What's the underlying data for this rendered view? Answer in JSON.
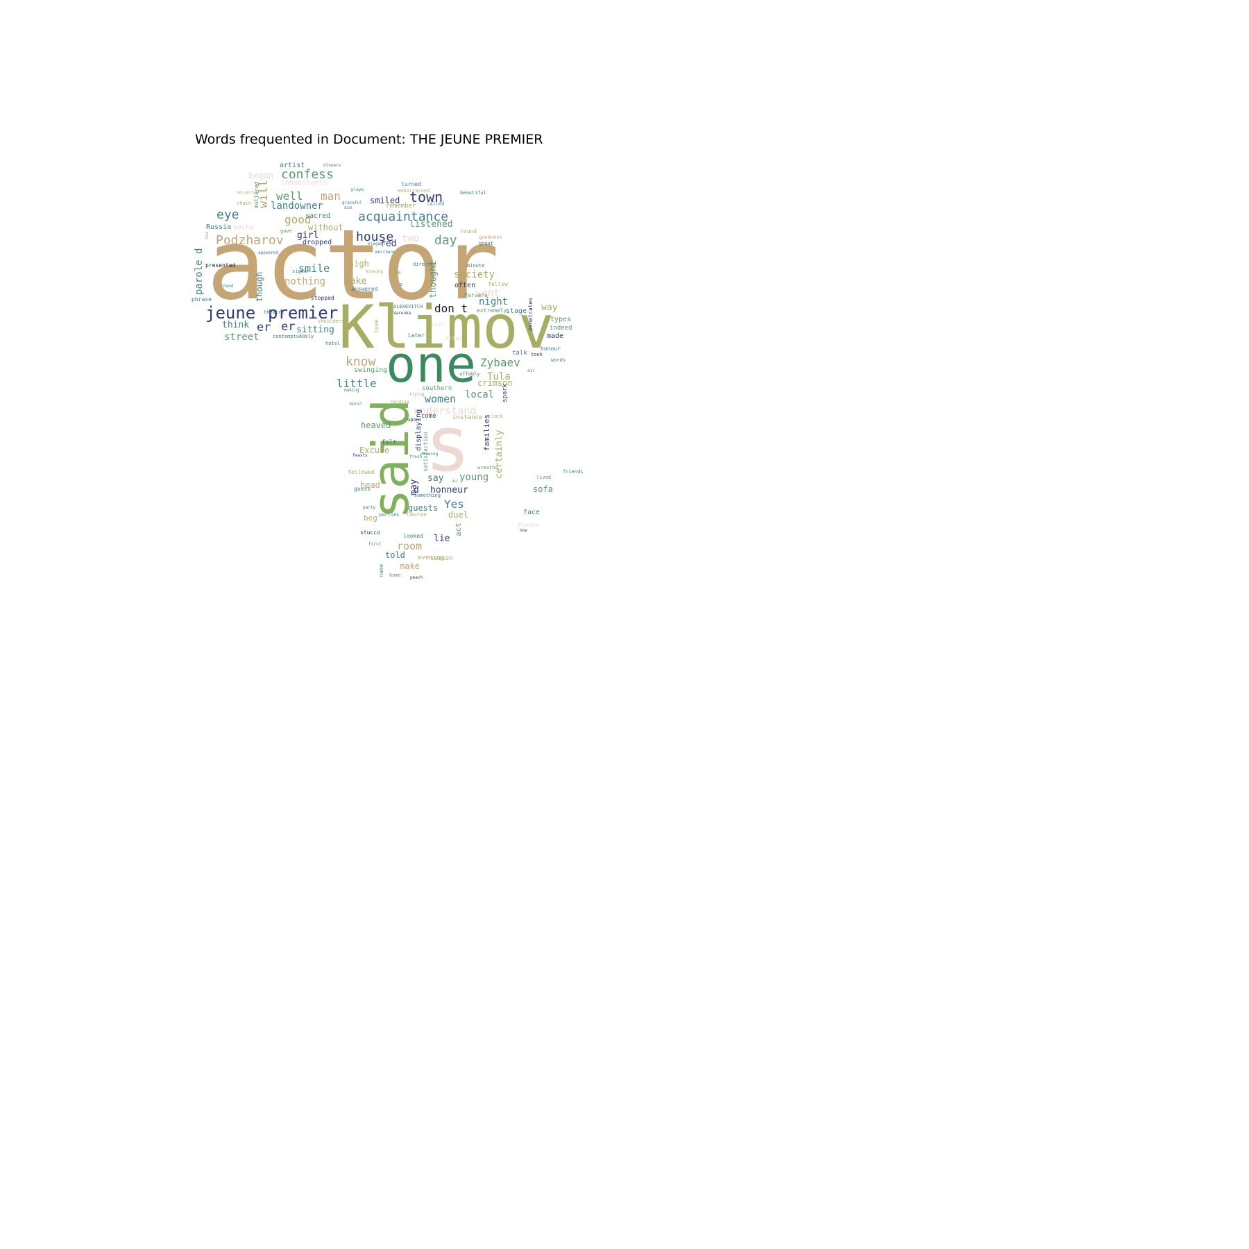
{
  "title": "Words frequented in Document: THE JEUNE PREMIER",
  "palette": {
    "tan": "#c4a573",
    "olive": "#a8ad64",
    "green": "#5a9a70",
    "darkgreen": "#3a8a5d",
    "leafgreen": "#7fb05a",
    "teal": "#3f7f87",
    "navy": "#2b3a7a",
    "pink": "#ecd9d4",
    "black": "#1a1a1a"
  },
  "words": [
    {
      "text": "actor",
      "color": "tan"
    },
    {
      "text": "Klimov",
      "color": "olive"
    },
    {
      "text": "one",
      "color": "darkgreen"
    },
    {
      "text": "said",
      "color": "leafgreen"
    },
    {
      "text": "s",
      "color": "pink"
    },
    {
      "text": "jeune",
      "color": "navy"
    },
    {
      "text": "premier",
      "color": "navy"
    },
    {
      "text": "acquaintance",
      "color": "teal"
    },
    {
      "text": "Podzharov",
      "color": "tan"
    },
    {
      "text": "confess",
      "color": "green"
    },
    {
      "text": "town",
      "color": "navy"
    },
    {
      "text": "house",
      "color": "navy"
    },
    {
      "text": "know",
      "color": "tan"
    },
    {
      "text": "Zybaev",
      "color": "green"
    },
    {
      "text": "little",
      "color": "teal"
    },
    {
      "text": "well",
      "color": "green"
    },
    {
      "text": "man",
      "color": "tan"
    },
    {
      "text": "eye",
      "color": "teal"
    },
    {
      "text": "good",
      "color": "olive"
    },
    {
      "text": "landowner",
      "color": "teal"
    },
    {
      "text": "day",
      "color": "green"
    },
    {
      "text": "society",
      "color": "olive"
    },
    {
      "text": "nothing",
      "color": "tan"
    },
    {
      "text": "smile",
      "color": "teal"
    },
    {
      "text": "will",
      "color": "olive"
    },
    {
      "text": "don t",
      "color": "black"
    },
    {
      "text": "night",
      "color": "teal"
    },
    {
      "text": "Tula",
      "color": "olive"
    },
    {
      "text": "women",
      "color": "teal"
    },
    {
      "text": "local",
      "color": "green"
    },
    {
      "text": "understand",
      "color": "pink"
    },
    {
      "text": "crimson",
      "color": "olive"
    },
    {
      "text": "street",
      "color": "green"
    },
    {
      "text": "sitting",
      "color": "teal"
    },
    {
      "text": "er",
      "color": "navy"
    },
    {
      "text": "er",
      "color": "navy"
    },
    {
      "text": "think",
      "color": "teal"
    },
    {
      "text": "listened",
      "color": "green"
    },
    {
      "text": "smiled",
      "color": "navy"
    },
    {
      "text": "two",
      "color": "pink"
    },
    {
      "text": "red",
      "color": "navy"
    },
    {
      "text": "take",
      "color": "olive"
    },
    {
      "text": "sigh",
      "color": "olive"
    },
    {
      "text": "went",
      "color": "pink"
    },
    {
      "text": "way",
      "color": "olive"
    },
    {
      "text": "thought",
      "color": "green"
    },
    {
      "text": "though",
      "color": "teal"
    },
    {
      "text": "parole d",
      "color": "teal"
    },
    {
      "text": "girl",
      "color": "navy"
    },
    {
      "text": "without",
      "color": "olive"
    },
    {
      "text": "dropped",
      "color": "navy"
    },
    {
      "text": "sacred",
      "color": "teal"
    },
    {
      "text": "artist",
      "color": "teal"
    },
    {
      "text": "began",
      "color": "pink"
    },
    {
      "text": "inhabitants",
      "color": "pink"
    },
    {
      "text": "Russia",
      "color": "teal"
    },
    {
      "text": "socks",
      "color": "pink"
    },
    {
      "text": "presented",
      "color": "black"
    },
    {
      "text": "heaved",
      "color": "green"
    },
    {
      "text": "Excuse",
      "color": "olive"
    },
    {
      "text": "swinging",
      "color": "green"
    },
    {
      "text": "families",
      "color": "navy"
    },
    {
      "text": "certainly",
      "color": "olive"
    },
    {
      "text": "displaying",
      "color": "navy"
    },
    {
      "text": "satisfaction",
      "color": "green"
    },
    {
      "text": "honneur",
      "color": "navy"
    },
    {
      "text": "d",
      "color": "navy"
    },
    {
      "text": "young",
      "color": "green"
    },
    {
      "text": "say",
      "color": "teal"
    },
    {
      "text": "may",
      "color": "navy"
    },
    {
      "text": "Yes",
      "color": "teal"
    },
    {
      "text": "guests",
      "color": "teal"
    },
    {
      "text": "duel",
      "color": "olive"
    },
    {
      "text": "sofa",
      "color": "green"
    },
    {
      "text": "lie",
      "color": "navy"
    },
    {
      "text": "room",
      "color": "tan"
    },
    {
      "text": "told",
      "color": "teal"
    },
    {
      "text": "make",
      "color": "tan"
    },
    {
      "text": "head",
      "color": "tan"
    },
    {
      "text": "beg",
      "color": "tan"
    },
    {
      "text": "season",
      "color": "olive"
    },
    {
      "text": "evening",
      "color": "olive"
    },
    {
      "text": "often",
      "color": "navy"
    },
    {
      "text": "stage",
      "color": "teal"
    },
    {
      "text": "types",
      "color": "green"
    },
    {
      "text": "made",
      "color": "navy"
    },
    {
      "text": "indeed",
      "color": "green"
    },
    {
      "text": "face",
      "color": "teal"
    },
    {
      "text": "come",
      "color": "navy"
    },
    {
      "text": "instance",
      "color": "olive"
    },
    {
      "text": "southern",
      "color": "green"
    },
    {
      "text": "felt",
      "color": "teal"
    },
    {
      "text": "followed",
      "color": "olive"
    },
    {
      "text": "guess",
      "color": "teal"
    },
    {
      "text": "stucco",
      "color": "navy"
    },
    {
      "text": "looked",
      "color": "teal"
    },
    {
      "text": "first",
      "color": "teal"
    },
    {
      "text": "home",
      "color": "green"
    },
    {
      "text": "peach",
      "color": "navy"
    },
    {
      "text": "name",
      "color": "green"
    },
    {
      "text": "act",
      "color": "green"
    },
    {
      "text": "t",
      "color": "olive"
    },
    {
      "text": "o",
      "color": "teal"
    },
    {
      "text": "answered",
      "color": "teal"
    },
    {
      "text": "stopped",
      "color": "navy"
    },
    {
      "text": "shoulders",
      "color": "olive"
    },
    {
      "text": "contemptuously",
      "color": "teal"
    },
    {
      "text": "fact",
      "color": "olive"
    },
    {
      "text": "hotel",
      "color": "teal"
    },
    {
      "text": "phrase",
      "color": "teal"
    },
    {
      "text": "hand",
      "color": "teal"
    },
    {
      "text": "signor",
      "color": "teal"
    },
    {
      "text": "appeared",
      "color": "teal"
    },
    {
      "text": "theatre",
      "color": "teal"
    },
    {
      "text": "gave",
      "color": "green"
    },
    {
      "text": "tea",
      "color": "olive"
    },
    {
      "text": "chain",
      "color": "olive"
    },
    {
      "text": "Delightful",
      "color": "olive"
    },
    {
      "text": "muttered",
      "color": "green"
    },
    {
      "text": "turned",
      "color": "teal"
    },
    {
      "text": "embarrassed",
      "color": "tan"
    },
    {
      "text": "remember",
      "color": "olive"
    },
    {
      "text": "called",
      "color": "teal"
    },
    {
      "text": "beautiful",
      "color": "teal"
    },
    {
      "text": "round",
      "color": "olive"
    },
    {
      "text": "goodness",
      "color": "tan"
    },
    {
      "text": "great",
      "color": "teal"
    },
    {
      "text": "elegant",
      "color": "teal"
    },
    {
      "text": "merchant",
      "color": "teal"
    },
    {
      "text": "knowing",
      "color": "olive"
    },
    {
      "text": "directly",
      "color": "teal"
    },
    {
      "text": "minute",
      "color": "teal"
    },
    {
      "text": "fellow",
      "color": "olive"
    },
    {
      "text": "Varvara",
      "color": "green"
    },
    {
      "text": "ALEXEVITCH",
      "color": "teal"
    },
    {
      "text": "Varenka",
      "color": "navy"
    },
    {
      "text": "extremely",
      "color": "green"
    },
    {
      "text": "love",
      "color": "olive"
    },
    {
      "text": "host",
      "color": "pink"
    },
    {
      "text": "tried",
      "color": "pink"
    },
    {
      "text": "Later",
      "color": "teal"
    },
    {
      "text": "talk",
      "color": "teal"
    },
    {
      "text": "took",
      "color": "navy"
    },
    {
      "text": "honour",
      "color": "teal"
    },
    {
      "text": "words",
      "color": "teal"
    },
    {
      "text": "penetrates",
      "color": "navy"
    },
    {
      "text": "affably",
      "color": "teal"
    },
    {
      "text": "air",
      "color": "teal"
    },
    {
      "text": "clock",
      "color": "olive"
    },
    {
      "text": "spark",
      "color": "navy"
    },
    {
      "text": "drawing",
      "color": "teal"
    },
    {
      "text": "wreaths",
      "color": "green"
    },
    {
      "text": "lived",
      "color": "green"
    },
    {
      "text": "friends",
      "color": "teal"
    },
    {
      "text": "now",
      "color": "navy"
    },
    {
      "text": "Please",
      "color": "pink"
    },
    {
      "text": "something",
      "color": "teal"
    },
    {
      "text": "course",
      "color": "tan"
    },
    {
      "text": "parties",
      "color": "teal"
    },
    {
      "text": "party",
      "color": "teal"
    },
    {
      "text": "feasts",
      "color": "navy"
    },
    {
      "text": "fresh",
      "color": "teal"
    },
    {
      "text": "holding",
      "color": "olive"
    },
    {
      "text": "trying",
      "color": "olive"
    },
    {
      "text": "upon",
      "color": "navy"
    },
    {
      "text": "making",
      "color": "teal"
    },
    {
      "text": "moral",
      "color": "teal"
    },
    {
      "text": "dinners",
      "color": "teal"
    },
    {
      "text": "plays",
      "color": "teal"
    },
    {
      "text": "graceful",
      "color": "teal"
    },
    {
      "text": "aim",
      "color": "teal"
    },
    {
      "text": "Ha",
      "color": "olive"
    }
  ]
}
